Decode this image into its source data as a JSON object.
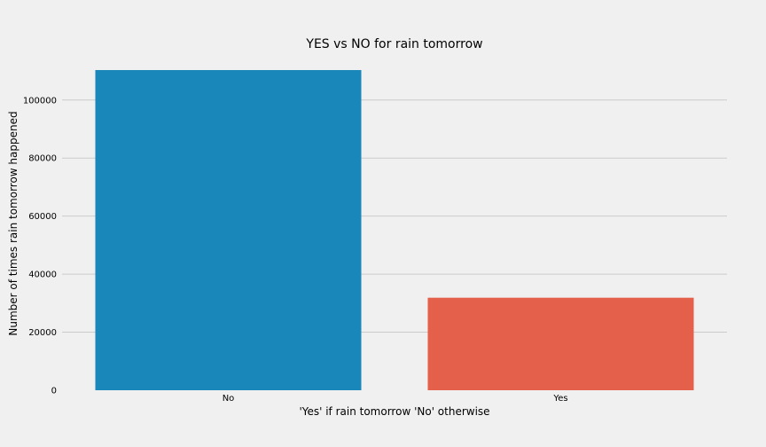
{
  "chart_data": {
    "type": "bar",
    "title": "YES vs NO for rain tomorrow",
    "xlabel": "'Yes' if rain tomorrow 'No' otherwise",
    "ylabel": "Number of times rain tomorrow happened",
    "categories": [
      "No",
      "Yes"
    ],
    "values": [
      110316,
      31877
    ],
    "colors": [
      "#1a87ba",
      "#e5604a"
    ],
    "ylim": [
      0,
      110316
    ],
    "yticks": [
      0,
      20000,
      40000,
      60000,
      80000,
      100000
    ],
    "ytick_labels": [
      "0",
      "20000",
      "40000",
      "60000",
      "80000",
      "100000"
    ],
    "grid": "horizontal",
    "legend": "none"
  }
}
